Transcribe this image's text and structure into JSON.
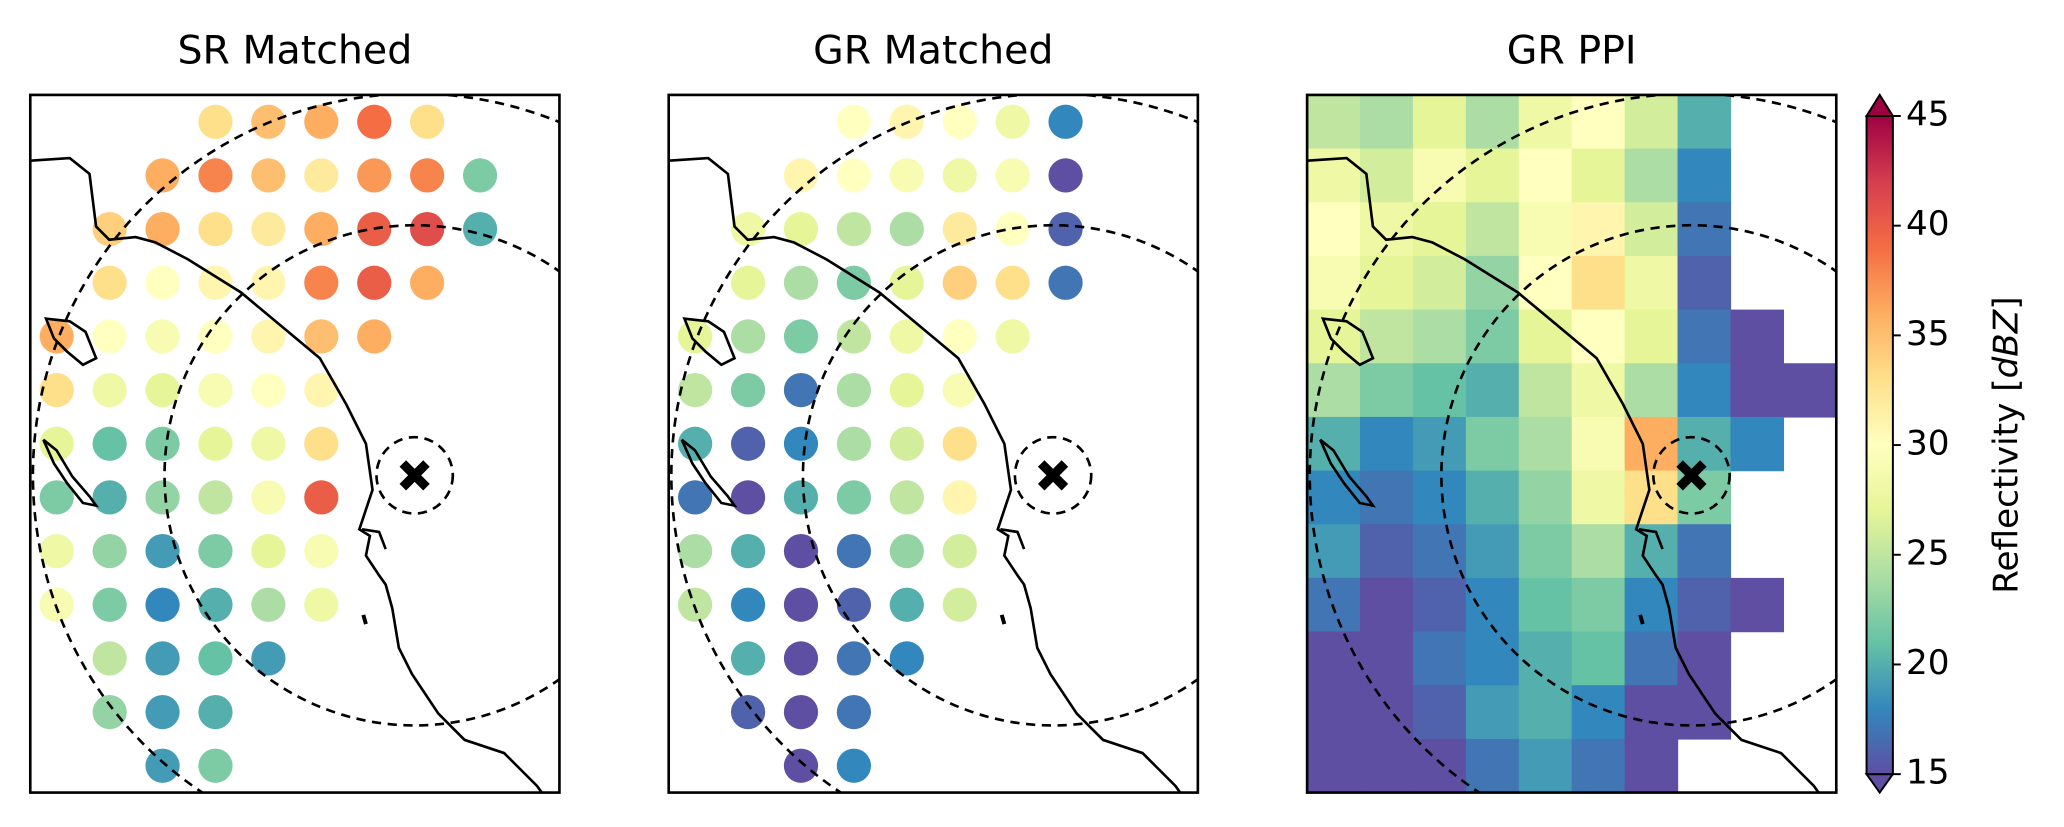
{
  "panels": [
    {
      "title": "SR Matched",
      "style": "points",
      "values": [
        [
          null,
          null,
          null,
          33,
          35,
          36,
          39,
          33,
          null,
          null
        ],
        [
          null,
          null,
          36,
          38,
          35,
          32,
          37,
          38,
          22,
          null
        ],
        [
          null,
          34,
          36,
          33,
          32,
          36,
          40,
          41,
          20,
          null
        ],
        [
          null,
          33,
          30,
          31,
          31,
          38,
          40,
          36,
          null,
          null
        ],
        [
          36,
          30,
          29,
          30,
          31,
          35,
          36,
          null,
          null,
          null
        ],
        [
          33,
          28,
          27,
          29,
          30,
          31,
          null,
          null,
          null,
          null
        ],
        [
          27,
          21,
          22,
          27,
          28,
          33,
          null,
          null,
          null,
          null
        ],
        [
          22,
          20,
          23,
          25,
          29,
          40,
          null,
          null,
          null,
          null
        ],
        [
          28,
          23,
          19,
          22,
          27,
          29,
          null,
          null,
          null,
          null
        ],
        [
          29,
          22,
          18,
          20,
          24,
          28,
          null,
          null,
          null,
          null
        ],
        [
          null,
          25,
          19,
          21,
          19,
          null,
          null,
          null,
          null,
          null
        ],
        [
          null,
          23,
          19,
          20,
          null,
          null,
          null,
          null,
          null,
          null
        ],
        [
          null,
          null,
          19,
          22,
          null,
          null,
          null,
          null,
          null,
          null
        ]
      ]
    },
    {
      "title": "GR Matched",
      "style": "points",
      "values": [
        [
          null,
          null,
          null,
          30,
          31,
          30,
          28,
          18,
          null,
          null
        ],
        [
          null,
          null,
          31,
          30,
          29,
          28,
          29,
          15,
          null,
          null
        ],
        [
          null,
          28,
          27,
          25,
          24,
          32,
          30,
          16,
          null,
          null
        ],
        [
          null,
          27,
          24,
          22,
          27,
          34,
          33,
          17,
          null,
          null
        ],
        [
          27,
          24,
          22,
          25,
          28,
          30,
          28,
          null,
          null,
          null
        ],
        [
          25,
          22,
          17,
          24,
          27,
          29,
          null,
          null,
          null,
          null
        ],
        [
          20,
          16,
          18,
          24,
          26,
          33,
          null,
          null,
          null,
          null
        ],
        [
          17,
          15,
          20,
          22,
          25,
          31,
          null,
          null,
          null,
          null
        ],
        [
          24,
          20,
          15,
          17,
          23,
          26,
          null,
          null,
          null,
          null
        ],
        [
          25,
          18,
          15,
          16,
          20,
          26,
          null,
          null,
          null,
          null
        ],
        [
          null,
          20,
          15,
          17,
          18,
          null,
          null,
          null,
          null,
          null
        ],
        [
          null,
          16,
          15,
          17,
          null,
          null,
          null,
          null,
          null,
          null
        ],
        [
          null,
          null,
          15,
          18,
          null,
          null,
          null,
          null,
          null,
          null
        ]
      ]
    },
    {
      "title": "GR PPI",
      "style": "field",
      "values": [
        [
          25,
          24,
          27,
          24,
          28,
          30,
          26,
          20,
          null,
          null
        ],
        [
          28,
          26,
          29,
          27,
          30,
          27,
          24,
          18,
          null,
          null
        ],
        [
          30,
          28,
          27,
          25,
          29,
          31,
          26,
          17,
          null,
          null
        ],
        [
          29,
          27,
          26,
          23,
          30,
          33,
          28,
          16,
          null,
          null
        ],
        [
          27,
          25,
          24,
          22,
          27,
          30,
          27,
          17,
          15,
          null
        ],
        [
          24,
          22,
          21,
          20,
          25,
          28,
          24,
          18,
          15,
          15
        ],
        [
          20,
          18,
          19,
          22,
          24,
          29,
          36,
          20,
          18,
          null
        ],
        [
          18,
          17,
          18,
          20,
          23,
          28,
          33,
          22,
          null,
          null
        ],
        [
          19,
          16,
          17,
          19,
          22,
          24,
          20,
          17,
          null,
          null
        ],
        [
          17,
          15,
          16,
          18,
          21,
          22,
          18,
          16,
          15,
          null
        ],
        [
          15,
          15,
          17,
          18,
          20,
          21,
          17,
          15,
          null,
          null
        ],
        [
          15,
          15,
          16,
          19,
          20,
          18,
          15,
          15,
          null,
          null
        ],
        [
          15,
          15,
          15,
          17,
          19,
          17,
          15,
          null,
          null,
          null
        ]
      ]
    }
  ],
  "colorbar": {
    "label_parts": [
      "Reflectivity [",
      "dBZ",
      "]"
    ],
    "clim": [
      15,
      45
    ],
    "ticks": [
      15,
      20,
      25,
      30,
      35,
      40,
      45
    ],
    "extend": "both",
    "colormap": [
      "#5e4fa2",
      "#3288bd",
      "#66c2a5",
      "#abdda4",
      "#e6f598",
      "#ffffbf",
      "#fee08b",
      "#fdae61",
      "#f46d43",
      "#d53e4f",
      "#9e0142"
    ]
  }
}
